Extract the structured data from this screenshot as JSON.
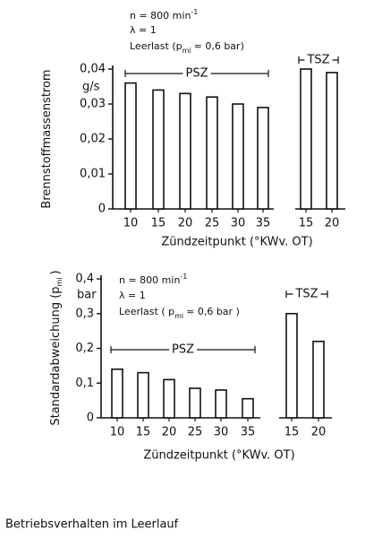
{
  "chart_data": [
    {
      "type": "bar",
      "annotations": [
        [
          "n = 800 min",
          "-1"
        ],
        [
          "λ = 1"
        ],
        [
          "Leerlast (p",
          "mi",
          "≈ 0,6 bar)"
        ]
      ],
      "y_label": [
        "Brennstoffmassenstrom"
      ],
      "y_unit": "g/s",
      "x_label": "Zündzeitpunkt (°KWv. OT)",
      "ylim": [
        0,
        0.04
      ],
      "yticks": [
        0,
        {
          "value": 0.01,
          "label": "0,01"
        },
        {
          "value": 0.02,
          "label": "0,02"
        },
        {
          "value": 0.03,
          "label": "0,03"
        },
        {
          "value": 0.04,
          "label": "0,04"
        }
      ],
      "color": "#ffffff",
      "series": [
        {
          "name": "PSZ",
          "categories": [
            "10",
            "15",
            "20",
            "25",
            "30",
            "35"
          ],
          "values": [
            0.036,
            0.034,
            0.033,
            0.032,
            0.03,
            0.029
          ]
        },
        {
          "name": "TSZ",
          "categories": [
            "15",
            "20"
          ],
          "values": [
            0.04,
            0.039
          ]
        }
      ]
    },
    {
      "type": "bar",
      "annotations": [
        [
          "n = 800 min",
          "-1"
        ],
        [
          "λ = 1"
        ],
        [
          "Leerlast ( p",
          "mi",
          "≈ 0,6 bar )"
        ]
      ],
      "y_label": [
        "Standardabweichung  (p",
        "mi",
        ")"
      ],
      "y_unit": "bar",
      "x_label": "Zündzeitpunkt (°KWv. OT)",
      "ylim": [
        0,
        0.4
      ],
      "yticks": [
        0,
        {
          "value": 0.1,
          "label": "0,1"
        },
        {
          "value": 0.2,
          "label": "0,2"
        },
        {
          "value": 0.3,
          "label": "0,3"
        },
        {
          "value": 0.4,
          "label": "0,4"
        }
      ],
      "color": "#ffffff",
      "series": [
        {
          "name": "PSZ",
          "categories": [
            "10",
            "15",
            "20",
            "25",
            "30",
            "35"
          ],
          "values": [
            0.14,
            0.13,
            0.11,
            0.085,
            0.08,
            0.055
          ]
        },
        {
          "name": "TSZ",
          "categories": [
            "15",
            "20"
          ],
          "values": [
            0.3,
            0.22
          ]
        }
      ]
    }
  ],
  "caption": "Betriebsverhalten im Leerlauf"
}
